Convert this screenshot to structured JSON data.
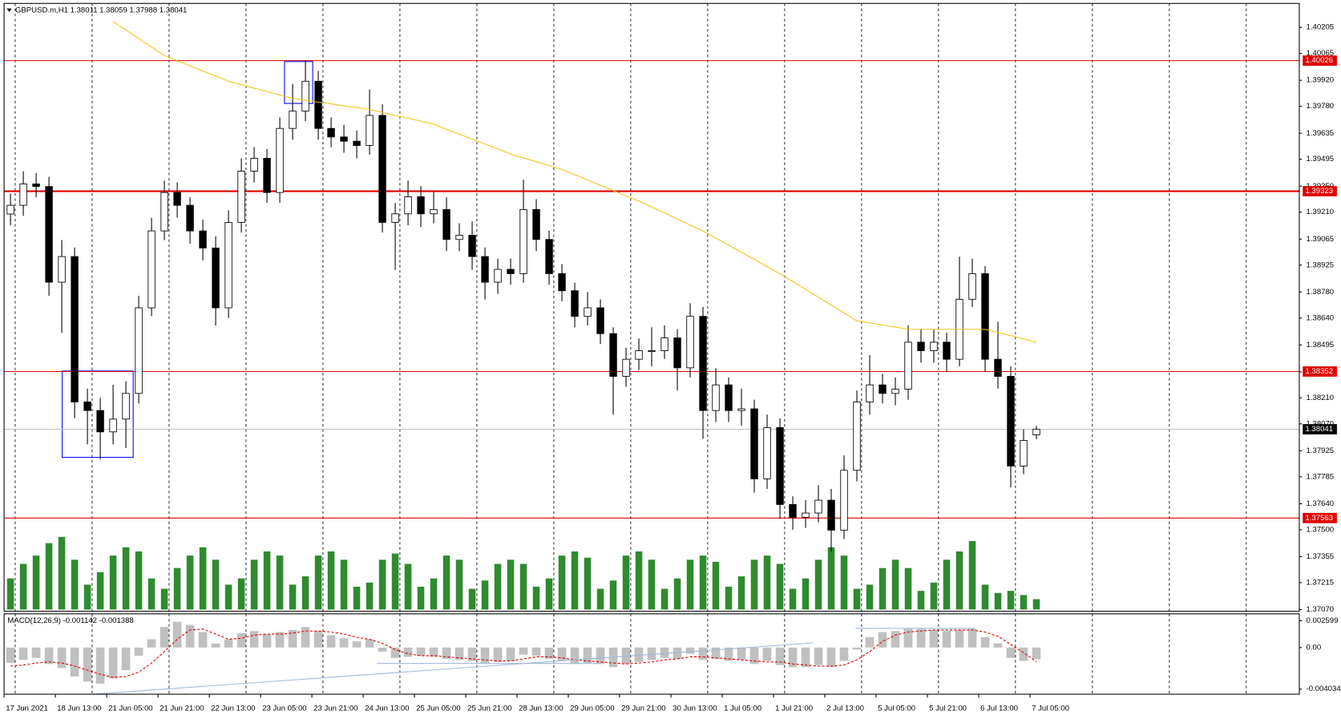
{
  "chart_data": {
    "type": "candlestick",
    "title": "GBPUSD.m,H1  1.38011 1.38059 1.37988 1.38041",
    "ylim": [
      1.37061,
      1.40334
    ],
    "yticks": [
      1.40205,
      1.40065,
      {
        "value": 1.3992,
        "label": "1.39920"
      },
      {
        "value": 1.3978,
        "label": "1.39780"
      },
      1.39635,
      1.39495,
      {
        "value": 1.3935,
        "label": "1.39350"
      },
      {
        "value": 1.3921,
        "label": "1.39210"
      },
      1.39065,
      1.38925,
      {
        "value": 1.3878,
        "label": "1.38780"
      },
      {
        "value": 1.3864,
        "label": "1.38640"
      },
      1.38495,
      {
        "value": 1.3835,
        "label": "1.38350"
      },
      {
        "value": 1.3821,
        "label": "1.38210"
      },
      {
        "value": 1.3807,
        "label": "1.38070"
      },
      1.37925,
      1.37785,
      {
        "value": 1.3764,
        "label": "1.37640"
      },
      {
        "value": 1.375,
        "label": "1.37500"
      },
      1.37355,
      1.37215,
      {
        "value": 1.3707,
        "label": "1.37070"
      }
    ],
    "xlim": [
      0,
      404
    ],
    "xticks": [
      {
        "value": 0,
        "label": "17 Jun 2021"
      },
      {
        "value": 16,
        "label": "18 Jun 13:00"
      },
      {
        "value": 32,
        "label": "21 Jun 05:00"
      },
      {
        "value": 48,
        "label": "21 Jun 21:00"
      },
      {
        "value": 64,
        "label": "22 Jun 13:00"
      },
      {
        "value": 80,
        "label": "23 Jun 05:00"
      },
      {
        "value": 96,
        "label": "23 Jun 21:00"
      },
      {
        "value": 112,
        "label": "24 Jun 13:00"
      },
      {
        "value": 128,
        "label": "25 Jun 05:00"
      },
      {
        "value": 144,
        "label": "25 Jun 21:00"
      },
      {
        "value": 160,
        "label": "28 Jun 13:00"
      },
      {
        "value": 176,
        "label": "29 Jun 05:00"
      },
      {
        "value": 192,
        "label": "29 Jun 21:00"
      },
      {
        "value": 208,
        "label": "30 Jun 13:00"
      },
      {
        "value": 224,
        "label": "1 Jul 05:00"
      },
      {
        "value": 240,
        "label": "1 Jul 21:00"
      },
      {
        "value": 256,
        "label": "2 Jul 13:00"
      },
      {
        "value": 272,
        "label": "5 Jul 05:00"
      },
      {
        "value": 288,
        "label": "5 Jul 21:00"
      },
      {
        "value": 304,
        "label": "6 Jul 13:00"
      },
      {
        "value": 320,
        "label": "7 Jul 05:00"
      }
    ],
    "up_color": "#ffffff",
    "down_color": "#000000",
    "wick_color": "#000000",
    "open": [
      1.392,
      1.39247,
      1.39362,
      1.39348,
      1.38833,
      1.38971,
      1.38188,
      1.38142,
      1.38027,
      1.38096,
      1.38234,
      1.38695,
      1.39109,
      1.39316,
      1.39247,
      1.39109,
      1.39017,
      1.38695,
      1.39155,
      1.39431,
      1.395,
      1.39316,
      1.39661,
      1.39754,
      1.39915,
      1.39661,
      1.39615,
      1.39592,
      1.39569,
      1.39731,
      1.39155,
      1.39201,
      1.39293,
      1.39201,
      1.39224,
      1.39063,
      1.39086,
      1.38971,
      1.38833,
      1.38902,
      1.38879,
      1.39224,
      1.39063,
      1.38879,
      1.38787,
      1.38649,
      1.38695,
      1.38556,
      1.38326,
      1.38418,
      1.38464,
      1.38464,
      1.38533,
      1.38372,
      1.38649,
      1.38142,
      1.3828,
      1.38142,
      1.38151,
      1.37774,
      1.3805,
      1.37636,
      1.37567,
      1.3759,
      1.37659,
      1.37498,
      1.3782,
      1.38188,
      1.3828,
      1.38234,
      1.38257,
      1.3851,
      1.38464,
      1.3851,
      1.38418,
      1.38741,
      1.38879,
      1.38418,
      1.38326,
      1.37843,
      1.38011
    ],
    "high": [
      1.3931,
      1.3943,
      1.3942,
      1.394,
      1.3906,
      1.3902,
      1.3826,
      1.3821,
      1.3828,
      1.383,
      1.3876,
      1.3918,
      1.3938,
      1.3937,
      1.3929,
      1.3917,
      1.3908,
      1.3922,
      1.395,
      1.3956,
      1.3955,
      1.3972,
      1.399,
      1.40026,
      1.3997,
      1.3972,
      1.3968,
      1.3965,
      1.3987,
      1.3979,
      1.3926,
      1.3938,
      1.3935,
      1.3932,
      1.3929,
      1.3915,
      1.3916,
      1.3902,
      1.3896,
      1.3896,
      1.39385,
      1.3928,
      1.3911,
      1.3893,
      1.3883,
      1.3878,
      1.3874,
      1.3859,
      1.3848,
      1.3853,
      1.3859,
      1.386,
      1.3858,
      1.3872,
      1.387,
      1.3837,
      1.3832,
      1.3826,
      1.382,
      1.3812,
      1.381,
      1.3768,
      1.3766,
      1.3774,
      1.3772,
      1.379,
      1.3825,
      1.3844,
      1.3834,
      1.3832,
      1.386,
      1.3858,
      1.3858,
      1.3856,
      1.38971,
      1.3896,
      1.3892,
      1.3862,
      1.3838,
      1.3804,
      1.38059
    ],
    "low": [
      1.3914,
      1.3919,
      1.3929,
      1.3876,
      1.3856,
      1.381,
      1.3796,
      1.3788,
      1.3796,
      1.3794,
      1.3818,
      1.3865,
      1.3906,
      1.3918,
      1.3904,
      1.3895,
      1.386,
      1.3864,
      1.391,
      1.3937,
      1.3926,
      1.3926,
      1.396,
      1.397,
      1.396,
      1.3956,
      1.3953,
      1.395,
      1.3952,
      1.391,
      1.389,
      1.3914,
      1.3913,
      1.3915,
      1.39,
      1.39,
      1.389,
      1.3874,
      1.3877,
      1.3882,
      1.3883,
      1.39,
      1.3882,
      1.3873,
      1.3859,
      1.386,
      1.385,
      1.3812,
      1.3827,
      1.3836,
      1.3838,
      1.3842,
      1.3825,
      1.3832,
      1.3799,
      1.3808,
      1.3808,
      1.3806,
      1.377,
      1.3772,
      1.3756,
      1.375,
      1.3751,
      1.3754,
      1.37382,
      1.3745,
      1.3776,
      1.3812,
      1.3818,
      1.3817,
      1.382,
      1.384,
      1.384,
      1.3835,
      1.3838,
      1.387,
      1.3835,
      1.3826,
      1.37728,
      1.378,
      1.37988
    ],
    "close": [
      1.39247,
      1.39362,
      1.39348,
      1.38833,
      1.38971,
      1.38188,
      1.38142,
      1.38027,
      1.38096,
      1.38234,
      1.38695,
      1.39109,
      1.39316,
      1.39247,
      1.39109,
      1.39017,
      1.38695,
      1.39155,
      1.39431,
      1.395,
      1.39316,
      1.39661,
      1.39754,
      1.39915,
      1.39661,
      1.39615,
      1.39592,
      1.39569,
      1.39731,
      1.39155,
      1.39201,
      1.39293,
      1.39201,
      1.39224,
      1.39063,
      1.39086,
      1.38971,
      1.38833,
      1.38902,
      1.38879,
      1.39224,
      1.39063,
      1.38879,
      1.38787,
      1.38649,
      1.38695,
      1.38556,
      1.38326,
      1.38418,
      1.38464,
      1.38464,
      1.38533,
      1.38372,
      1.38649,
      1.38142,
      1.3828,
      1.38142,
      1.38151,
      1.37774,
      1.3805,
      1.37636,
      1.37567,
      1.3759,
      1.37659,
      1.37498,
      1.3782,
      1.38188,
      1.3828,
      1.38234,
      1.38257,
      1.3851,
      1.38464,
      1.3851,
      1.38418,
      1.38741,
      1.38879,
      1.38418,
      1.38326,
      1.37843,
      1.37981,
      1.38041
    ],
    "ma": {
      "color": "#f0c419",
      "values": [
        null,
        null,
        null,
        null,
        null,
        null,
        null,
        null,
        1.40237,
        1.40191,
        1.40145,
        1.40099,
        1.40053,
        1.40025,
        1.39998,
        1.3997,
        1.39943,
        1.39915,
        1.39897,
        1.39878,
        1.3986,
        1.39841,
        1.39823,
        1.39813,
        1.39803,
        1.39793,
        1.39783,
        1.39773,
        1.39763,
        1.39747,
        1.39731,
        1.39716,
        1.397,
        1.39684,
        1.39657,
        1.3963,
        1.39604,
        1.39577,
        1.3955,
        1.39523,
        1.39502,
        1.39482,
        1.39461,
        1.3944,
        1.39412,
        1.39383,
        1.39355,
        1.39327,
        1.39298,
        1.3927,
        1.39238,
        1.39206,
        1.39173,
        1.39141,
        1.39109,
        1.39071,
        1.39032,
        1.38994,
        1.38956,
        1.38917,
        1.38879,
        1.38837,
        1.38794,
        1.38752,
        1.3871,
        1.38667,
        1.38625,
        1.38614,
        1.38602,
        1.38591,
        1.38579,
        1.38579,
        1.38579,
        1.38579,
        1.38579,
        1.38579,
        1.38579,
        1.38562,
        1.38545,
        1.38527,
        1.3851
      ]
    },
    "volume": {
      "color": "#2e8b2e",
      "values": [
        1500,
        2200,
        2600,
        3200,
        3500,
        2400,
        1200,
        1800,
        2600,
        3000,
        2800,
        1500,
        1000,
        2000,
        2600,
        3000,
        2400,
        1200,
        1500,
        2400,
        2800,
        2600,
        1200,
        1600,
        2600,
        2800,
        2400,
        1100,
        1300,
        2400,
        2700,
        2200,
        1100,
        1500,
        2600,
        2400,
        1000,
        1400,
        2200,
        2400,
        2200,
        1100,
        1500,
        2600,
        2800,
        2500,
        1000,
        1400,
        2600,
        2800,
        2400,
        1000,
        1500,
        2400,
        2600,
        2300,
        1100,
        1600,
        2400,
        2600,
        2200,
        1000,
        1500,
        2400,
        3000,
        2600,
        1000,
        1200,
        2000,
        2400,
        2000,
        900,
        1300,
        2400,
        2800,
        3300,
        1200,
        800,
        900,
        700,
        500
      ]
    },
    "level_color": "#e00000",
    "levels": [
      1.40026,
      1.39323,
      1.38352,
      1.37563
    ],
    "current_price": 1.38041,
    "macd": {
      "title": "MACD(12,26,9) -0.001142 -0.001388",
      "ylim": [
        -0.00453,
        0.00327
      ],
      "yticks": [
        0.002599,
        {
          "value": 0,
          "label": "0.00"
        },
        -0.004034
      ],
      "histogram_color": "#c0c0c0",
      "signal_color": "#e00000",
      "histogram": [
        -0.0015,
        -0.0012,
        -0.001,
        -0.0016,
        -0.002,
        -0.0028,
        -0.0033,
        -0.0035,
        -0.003,
        -0.0022,
        -0.0008,
        0.0008,
        0.002,
        0.0025,
        0.0022,
        0.0015,
        0.0004,
        0.0008,
        0.0014,
        0.0016,
        0.0013,
        0.0015,
        0.0017,
        0.002,
        0.0016,
        0.0012,
        0.0009,
        0.0006,
        0.0008,
        -0.0004,
        -0.001,
        -0.0009,
        -0.0008,
        -0.0009,
        -0.0011,
        -0.0012,
        -0.0013,
        -0.0015,
        -0.0014,
        -0.0013,
        -0.0007,
        -0.0008,
        -0.0011,
        -0.0013,
        -0.0016,
        -0.0015,
        -0.0016,
        -0.0019,
        -0.0016,
        -0.0014,
        -0.0012,
        -0.001,
        -0.0011,
        -0.0006,
        -0.0012,
        -0.0011,
        -0.0013,
        -0.0012,
        -0.0016,
        -0.0013,
        -0.0017,
        -0.0019,
        -0.0019,
        -0.0017,
        -0.0019,
        -0.0013,
        -0.0002,
        0.001,
        0.0015,
        0.0016,
        0.0018,
        0.0018,
        0.0017,
        0.0016,
        0.0017,
        0.0018,
        0.001,
        0.0004,
        -0.001,
        -0.0013,
        -0.001142
      ],
      "signal": [
        -0.0018,
        -0.0017,
        -0.0015,
        -0.0014,
        -0.0015,
        -0.0018,
        -0.0022,
        -0.0026,
        -0.0029,
        -0.0028,
        -0.0024,
        -0.0015,
        -0.0004,
        0.0008,
        0.0017,
        0.0018,
        0.0013,
        0.0008,
        0.0009,
        0.0012,
        0.0013,
        0.0013,
        0.0014,
        0.0016,
        0.0016,
        0.0015,
        0.0013,
        0.001,
        0.0008,
        0.0004,
        -0.0002,
        -0.0006,
        -0.0008,
        -0.0008,
        -0.0009,
        -0.001,
        -0.0011,
        -0.0012,
        -0.0013,
        -0.0013,
        -0.0011,
        -0.0009,
        -0.0009,
        -0.001,
        -0.0012,
        -0.0013,
        -0.0014,
        -0.0015,
        -0.0016,
        -0.0015,
        -0.0014,
        -0.0012,
        -0.0011,
        -0.0009,
        -0.0009,
        -0.001,
        -0.0011,
        -0.0012,
        -0.0013,
        -0.0014,
        -0.0014,
        -0.0016,
        -0.0017,
        -0.0018,
        -0.0018,
        -0.0017,
        -0.0012,
        -0.0004,
        0.0006,
        0.0012,
        0.0015,
        0.0016,
        0.0017,
        0.0017,
        0.0017,
        0.0017,
        0.0015,
        0.0011,
        0.0003,
        -0.0005,
        -0.001388
      ]
    }
  }
}
